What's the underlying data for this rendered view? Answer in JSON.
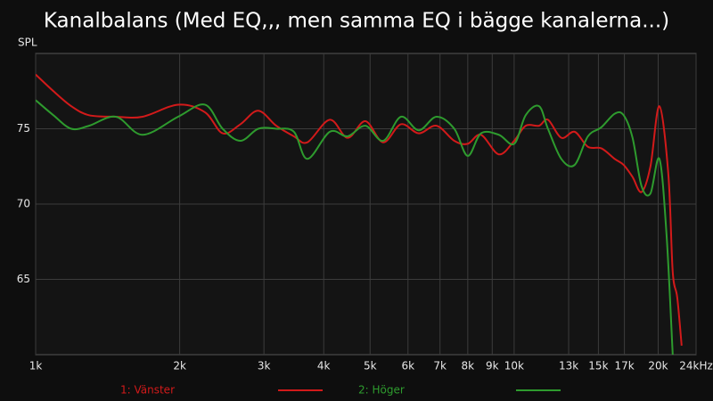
{
  "chart_data": {
    "type": "line",
    "title": "Kanalbalans (Med EQ,,, men samma EQ i bägge kanalerna...)",
    "y_label": "SPL",
    "log_x": true,
    "grid": true,
    "xlim": [
      1000,
      24000
    ],
    "ylim": [
      60,
      80
    ],
    "xticks": [
      {
        "value": 1000,
        "label": "1k"
      },
      {
        "value": 2000,
        "label": "2k"
      },
      {
        "value": 3000,
        "label": "3k"
      },
      {
        "value": 4000,
        "label": "4k"
      },
      {
        "value": 5000,
        "label": "5k"
      },
      {
        "value": 6000,
        "label": "6k"
      },
      {
        "value": 7000,
        "label": "7k"
      },
      {
        "value": 8000,
        "label": "8k"
      },
      {
        "value": 9000,
        "label": "9k"
      },
      {
        "value": 10000,
        "label": "10k"
      },
      {
        "value": 13000,
        "label": "13k"
      },
      {
        "value": 15000,
        "label": "15k"
      },
      {
        "value": 17000,
        "label": "17k"
      },
      {
        "value": 20000,
        "label": "20k"
      },
      {
        "value": 24000,
        "label": "24kHz"
      }
    ],
    "yticks": [
      65,
      70,
      75
    ],
    "series": [
      {
        "name": "1: Vänster",
        "color": "#d21a1a",
        "x": [
          1000,
          1089,
          1187,
          1293,
          1471,
          1673,
          1985,
          2258,
          2459,
          2679,
          2918,
          3182,
          3465,
          3698,
          4118,
          4487,
          4888,
          5325,
          5800,
          6318,
          6883,
          7497,
          7995,
          8527,
          9290,
          10000,
          10571,
          11272,
          11767,
          12547,
          13380,
          14264,
          15213,
          16223,
          16936,
          17679,
          18458,
          19268,
          20115,
          21000,
          21450,
          21920,
          22390
        ],
        "values": [
          78.6,
          77.5,
          76.5,
          75.9,
          75.8,
          75.8,
          76.6,
          76.1,
          74.7,
          75.3,
          76.2,
          75.2,
          74.5,
          74.1,
          75.6,
          74.4,
          75.5,
          74.1,
          75.3,
          74.7,
          75.2,
          74.2,
          74.0,
          74.6,
          73.3,
          74.2,
          75.2,
          75.2,
          75.6,
          74.4,
          74.8,
          73.8,
          73.7,
          73.0,
          72.6,
          71.8,
          70.8,
          72.5,
          76.5,
          72.0,
          65.5,
          63.8,
          60.6
        ]
      },
      {
        "name": "2: Höger",
        "color": "#2e9b2e",
        "x": [
          1000,
          1089,
          1187,
          1293,
          1471,
          1673,
          1985,
          2258,
          2459,
          2679,
          2918,
          3182,
          3465,
          3698,
          4118,
          4487,
          4888,
          5325,
          5800,
          6318,
          6883,
          7497,
          7995,
          8527,
          9290,
          10000,
          10571,
          11272,
          11767,
          12547,
          13380,
          14264,
          15213,
          16223,
          16936,
          17679,
          18458,
          19268,
          20115,
          20818,
          21450
        ],
        "values": [
          76.9,
          75.9,
          75.0,
          75.2,
          75.8,
          74.6,
          75.8,
          76.6,
          75.0,
          74.2,
          75.0,
          75.0,
          74.8,
          73.0,
          74.8,
          74.5,
          75.2,
          74.2,
          75.8,
          74.9,
          75.8,
          75.0,
          73.2,
          74.7,
          74.6,
          74.0,
          75.9,
          76.5,
          75.0,
          73.0,
          72.6,
          74.5,
          75.1,
          76.0,
          75.9,
          74.4,
          71.2,
          70.7,
          73.0,
          68.0,
          60.0
        ]
      }
    ]
  }
}
